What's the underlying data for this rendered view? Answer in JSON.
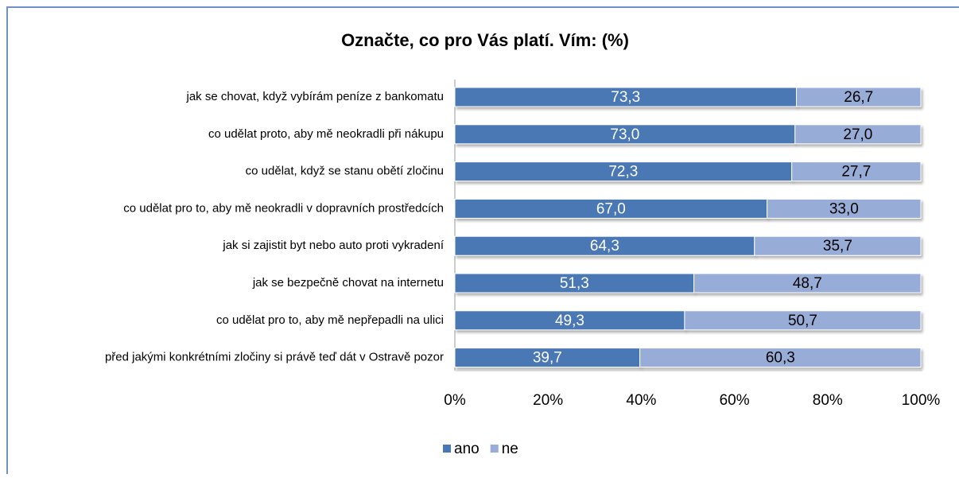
{
  "chart_data": {
    "type": "stacked_bar_horizontal",
    "title": "Označte, co pro Vás platí. Vím: (%)",
    "categories": [
      "jak se chovat, když vybírám peníze z bankomatu",
      "co udělat proto, aby mě neokradli při nákupu",
      "co udělat, když se stanu obětí zločinu",
      "co udělat pro to, aby mě neokradli v dopravních prostředcích",
      "jak si zajistit byt nebo auto proti vykradení",
      "jak se bezpečně chovat na internetu",
      "co udělat pro to, aby mě nepřepadli na ulici",
      "před jakými konkrétními zločiny si právě teď dát v Ostravě pozor"
    ],
    "series": [
      {
        "name": "ano",
        "color": "#4a78b4",
        "values": [
          73.3,
          73.0,
          72.3,
          67.0,
          64.3,
          51.3,
          49.3,
          39.7
        ],
        "value_labels": [
          "73,3",
          "73,0",
          "72,3",
          "67,0",
          "64,3",
          "51,3",
          "49,3",
          "39,7"
        ]
      },
      {
        "name": "ne",
        "color": "#97acd6",
        "values": [
          26.7,
          27.0,
          27.7,
          33.0,
          35.7,
          48.7,
          50.7,
          60.3
        ],
        "value_labels": [
          "26,7",
          "27,0",
          "27,7",
          "33,0",
          "35,7",
          "48,7",
          "50,7",
          "60,3"
        ]
      }
    ],
    "xlim": [
      0,
      100
    ],
    "xticks": [
      {
        "value": 0,
        "label": "0%"
      },
      {
        "value": 20,
        "label": "20%"
      },
      {
        "value": 40,
        "label": "40%"
      },
      {
        "value": 60,
        "label": "60%"
      },
      {
        "value": 80,
        "label": "80%"
      },
      {
        "value": 100,
        "label": "100%"
      }
    ],
    "grid": false,
    "legend": "bottom"
  }
}
